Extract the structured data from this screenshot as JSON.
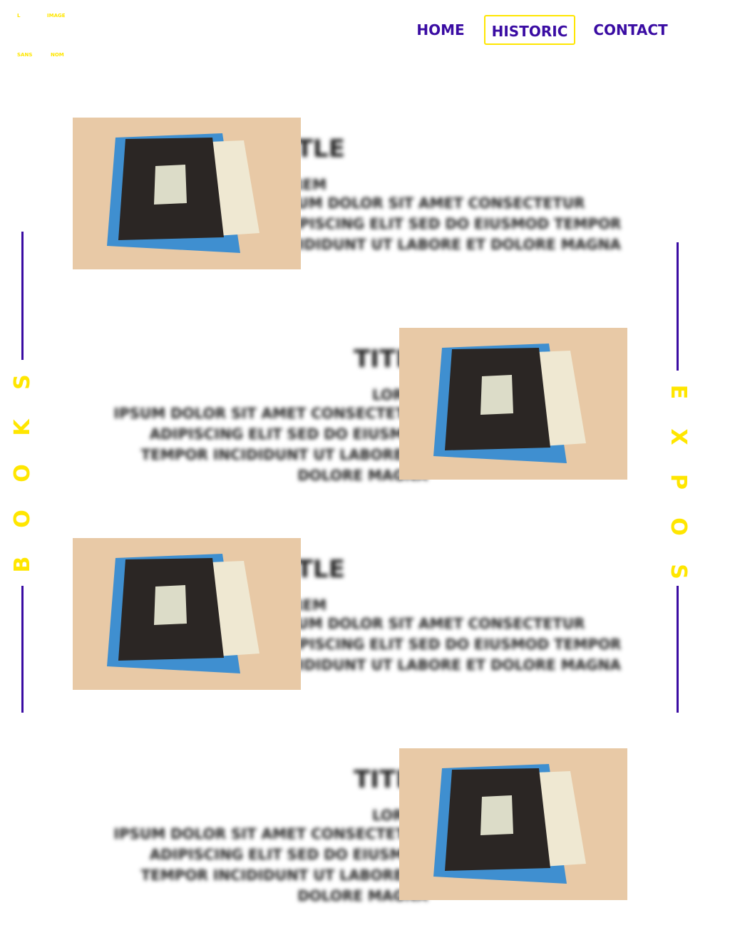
{
  "logo": {
    "top_left": "L",
    "top_right": "IMAGE",
    "bottom_left": "SANS",
    "bottom_right": "NOM"
  },
  "nav": {
    "items": [
      "HOME",
      "HISTORIC",
      "CONTACT"
    ],
    "active": 1
  },
  "side_left": {
    "label": "BOOKS"
  },
  "side_right": {
    "label": "EXPOS"
  },
  "items": [
    {
      "title": "TITLE",
      "subtitle": "LOREM",
      "text": "IPSUM DOLOR SIT AMET CONSECTETUR ADIPISCING ELIT SED DO EIUSMOD TEMPOR INCIDIDUNT UT LABORE ET DOLORE MAGNA"
    },
    {
      "title": "TITLE",
      "subtitle": "LOREM",
      "text": "IPSUM DOLOR SIT AMET CONSECTETUR ADIPISCING ELIT SED DO EIUSMOD TEMPOR INCIDIDUNT UT LABORE ET DOLORE MAGNA"
    },
    {
      "title": "TITLE",
      "subtitle": "LOREM",
      "text": "IPSUM DOLOR SIT AMET CONSECTETUR ADIPISCING ELIT SED DO EIUSMOD TEMPOR INCIDIDUNT UT LABORE ET DOLORE MAGNA"
    },
    {
      "title": "TITLE",
      "subtitle": "LOREM",
      "text": "IPSUM DOLOR SIT AMET CONSECTETUR ADIPISCING ELIT SED DO EIUSMOD TEMPOR INCIDIDUNT UT LABORE ET DOLORE MAGNA"
    }
  ]
}
